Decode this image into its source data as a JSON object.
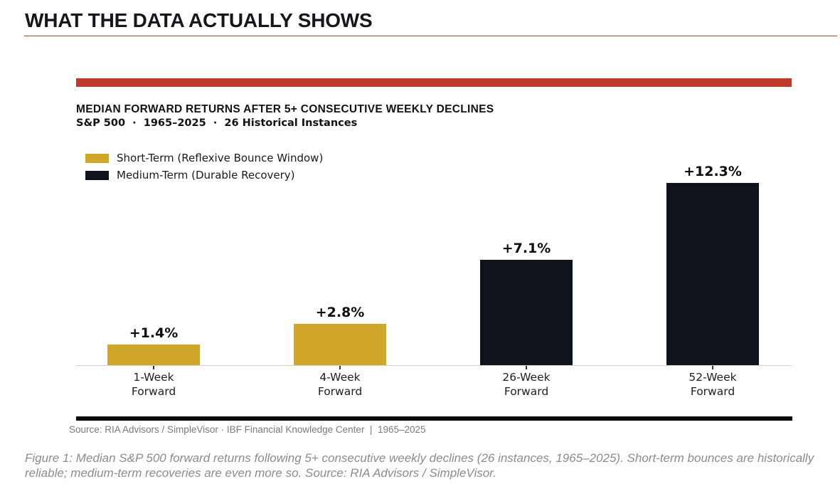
{
  "page": {
    "title": "WHAT THE DATA ACTUALLY SHOWS",
    "caption": "Figure 1: Median S&P 500 forward returns following 5+ consecutive weekly declines (26 instances, 1965–2025). Short-term bounces are historically reliable; medium-term recoveries are even more so. Source: RIA Advisors / SimpleVisor."
  },
  "chart": {
    "title": "MEDIAN FORWARD RETURNS AFTER 5+ CONSECUTIVE WEEKLY DECLINES",
    "subtitle": "S&P 500  ·  1965–2025  ·  26 Historical Instances",
    "source": "Source: RIA Advisors / SimpleVisor · IBF Financial Knowledge Center  |  1965–2025"
  },
  "chart_data": {
    "type": "bar",
    "title": "MEDIAN FORWARD RETURNS AFTER 5+ CONSECUTIVE WEEKLY DECLINES",
    "subtitle": "S&P 500 · 1965–2025 · 26 Historical Instances",
    "categories": [
      "1-Week\nForward",
      "4-Week\nForward",
      "26-Week\nForward",
      "52-Week\nForward"
    ],
    "values": [
      1.4,
      2.8,
      7.1,
      12.3
    ],
    "value_labels": [
      "+1.4%",
      "+2.8%",
      "+7.1%",
      "+12.3%"
    ],
    "bar_colors": [
      "#d0a62b",
      "#d0a62b",
      "#0f131c",
      "#0f131c"
    ],
    "series": [
      {
        "name": "Short-Term (Reflexive Bounce Window)",
        "color": "#d0a62b",
        "categories": [
          "1-Week Forward",
          "4-Week Forward"
        ]
      },
      {
        "name": "Medium-Term (Durable Recovery)",
        "color": "#0f131c",
        "categories": [
          "26-Week Forward",
          "52-Week Forward"
        ]
      }
    ],
    "legend": [
      {
        "label": "Short-Term (Reflexive Bounce Window)",
        "color": "#d0a62b"
      },
      {
        "label": "Medium-Term (Durable Recovery)",
        "color": "#0f131c"
      }
    ],
    "legend_position": "upper-left",
    "xlabel": "",
    "ylabel": "",
    "ylim": [
      0,
      13.5
    ],
    "grid": false,
    "y_axis_visible": false,
    "unit": "percent"
  },
  "colors": {
    "accent_red": "#be3a2b",
    "thin_rule_red": "#a3453b",
    "gold": "#d0a62b",
    "dark_navy": "#0f131c",
    "bottom_rule_black": "#0b0b0b",
    "source_gray": "#7b7b7b",
    "caption_gray": "#8c8c8c"
  }
}
